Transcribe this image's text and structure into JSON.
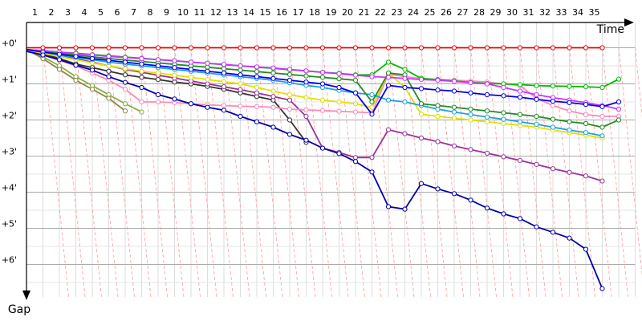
{
  "chart_data": {
    "type": "line",
    "x_label": "Time",
    "y_label": "Gap",
    "xlim": [
      0,
      37
    ],
    "ylim": [
      -0.7,
      6.9
    ],
    "xticks": [
      1,
      2,
      3,
      4,
      5,
      6,
      7,
      8,
      9,
      10,
      11,
      12,
      13,
      14,
      15,
      16,
      17,
      18,
      19,
      20,
      21,
      22,
      23,
      24,
      25,
      26,
      27,
      28,
      29,
      30,
      31,
      32,
      33,
      34,
      35
    ],
    "yticks": [
      {
        "value": 0,
        "label": "+0'"
      },
      {
        "value": 1,
        "label": "+1'"
      },
      {
        "value": 2,
        "label": "+2'"
      },
      {
        "value": 3,
        "label": "+3'"
      },
      {
        "value": 4,
        "label": "+4'"
      },
      {
        "value": 5,
        "label": "+5'"
      },
      {
        "value": 6,
        "label": "+6'"
      }
    ],
    "grid": true,
    "series": [
      {
        "color": "#88aa44",
        "values": [
          0.05,
          0.25,
          0.5,
          0.8,
          1.05,
          1.3,
          1.55,
          1.78,
          null,
          null,
          null,
          null,
          null,
          null,
          null,
          null,
          null,
          null,
          null,
          null,
          null,
          null,
          null,
          null,
          null,
          null,
          null,
          null,
          null,
          null,
          null,
          null,
          null,
          null,
          null,
          null,
          null
        ]
      },
      {
        "color": "#888844",
        "values": [
          0.05,
          0.3,
          0.6,
          0.9,
          1.15,
          1.4,
          1.75,
          null,
          null,
          null,
          null,
          null,
          null,
          null,
          null,
          null,
          null,
          null,
          null,
          null,
          null,
          null,
          null,
          null,
          null,
          null,
          null,
          null,
          null,
          null,
          null,
          null,
          null,
          null,
          null,
          null,
          null
        ]
      },
      {
        "color": "#333333",
        "values": [
          0.05,
          0.15,
          0.3,
          0.45,
          0.55,
          0.65,
          0.75,
          0.82,
          0.88,
          0.95,
          1.0,
          1.07,
          1.15,
          1.25,
          1.35,
          1.45,
          2.0,
          2.62,
          null,
          null,
          null,
          null,
          null,
          null,
          null,
          null,
          null,
          null,
          null,
          null,
          null,
          null,
          null,
          null,
          null,
          null,
          null
        ]
      },
      {
        "color": "#993399",
        "values": [
          0.05,
          0.1,
          0.2,
          0.3,
          0.4,
          0.5,
          0.6,
          0.68,
          0.76,
          0.84,
          0.92,
          1.0,
          1.08,
          1.16,
          1.25,
          1.35,
          1.45,
          1.9,
          2.78,
          2.9,
          3.04,
          3.04,
          2.27,
          2.38,
          2.5,
          2.6,
          2.72,
          2.82,
          2.92,
          3.02,
          3.12,
          3.23,
          3.35,
          3.45,
          3.55,
          3.69,
          null
        ]
      },
      {
        "color": "#ff88bb",
        "values": [
          0.05,
          0.2,
          0.35,
          0.5,
          0.7,
          0.9,
          1.15,
          1.5,
          1.5,
          1.52,
          1.55,
          1.58,
          1.6,
          1.62,
          1.63,
          1.65,
          1.7,
          1.72,
          1.74,
          1.76,
          1.78,
          1.8,
          0.73,
          0.8,
          0.85,
          0.88,
          0.9,
          0.92,
          0.95,
          1.0,
          1.05,
          1.4,
          1.6,
          1.75,
          1.85,
          1.9,
          1.9
        ]
      },
      {
        "color": "#e0e000",
        "values": [
          0.05,
          0.15,
          0.25,
          0.33,
          0.42,
          0.5,
          0.58,
          0.65,
          0.7,
          0.76,
          0.82,
          0.88,
          0.94,
          1.0,
          1.1,
          1.2,
          1.3,
          1.38,
          1.45,
          1.5,
          1.55,
          1.65,
          0.7,
          1.1,
          1.84,
          1.9,
          1.95,
          2.0,
          2.05,
          2.1,
          2.15,
          2.2,
          2.28,
          2.35,
          2.42,
          2.5,
          null
        ]
      },
      {
        "color": "#1e9fe0",
        "values": [
          0.05,
          0.12,
          0.2,
          0.27,
          0.33,
          0.4,
          0.45,
          0.5,
          0.55,
          0.6,
          0.65,
          0.7,
          0.75,
          0.8,
          0.85,
          0.9,
          0.97,
          1.04,
          1.1,
          1.18,
          1.25,
          1.3,
          1.45,
          1.5,
          1.6,
          1.7,
          1.78,
          1.85,
          1.92,
          1.98,
          2.05,
          2.12,
          2.2,
          2.28,
          2.35,
          2.44,
          null
        ]
      },
      {
        "color": "#228b22",
        "values": [
          0.05,
          0.1,
          0.15,
          0.2,
          0.25,
          0.3,
          0.34,
          0.38,
          0.42,
          0.46,
          0.5,
          0.54,
          0.58,
          0.62,
          0.66,
          0.7,
          0.74,
          0.78,
          0.82,
          0.86,
          0.9,
          1.5,
          0.7,
          0.75,
          1.55,
          1.6,
          1.65,
          1.7,
          1.75,
          1.8,
          1.85,
          1.9,
          1.98,
          2.05,
          2.1,
          2.2,
          2.0
        ]
      },
      {
        "color": "#00bb00",
        "values": [
          0.05,
          0.08,
          0.12,
          0.15,
          0.19,
          0.22,
          0.26,
          0.29,
          0.33,
          0.36,
          0.4,
          0.43,
          0.47,
          0.5,
          0.54,
          0.57,
          0.61,
          0.64,
          0.68,
          0.71,
          0.75,
          0.75,
          0.4,
          0.6,
          0.85,
          0.88,
          0.92,
          0.96,
          0.99,
          1.0,
          1.02,
          1.05,
          1.06,
          1.07,
          1.08,
          1.1,
          0.87
        ]
      },
      {
        "color": "#cc33ff",
        "values": [
          0.05,
          0.08,
          0.12,
          0.16,
          0.2,
          0.24,
          0.27,
          0.3,
          0.33,
          0.36,
          0.4,
          0.43,
          0.46,
          0.5,
          0.53,
          0.56,
          0.6,
          0.64,
          0.68,
          0.72,
          0.76,
          0.8,
          0.82,
          0.85,
          0.88,
          0.9,
          0.93,
          0.97,
          1.0,
          1.1,
          1.2,
          1.3,
          1.38,
          1.45,
          1.52,
          1.6,
          1.7
        ]
      },
      {
        "color": "#0000ee",
        "values": [
          0.05,
          0.12,
          0.18,
          0.24,
          0.3,
          0.35,
          0.4,
          0.45,
          0.5,
          0.55,
          0.6,
          0.65,
          0.7,
          0.75,
          0.8,
          0.85,
          0.9,
          0.95,
          1.0,
          1.1,
          1.25,
          1.84,
          1.04,
          1.1,
          1.13,
          1.17,
          1.2,
          1.25,
          1.3,
          1.33,
          1.37,
          1.43,
          1.48,
          1.52,
          1.57,
          1.63,
          1.5
        ]
      },
      {
        "color": "#0000aa",
        "values": [
          0.1,
          0.2,
          0.33,
          0.48,
          0.62,
          0.8,
          0.96,
          1.1,
          1.3,
          1.42,
          1.55,
          1.65,
          1.73,
          1.9,
          2.05,
          2.2,
          2.4,
          2.56,
          2.78,
          2.93,
          3.15,
          3.44,
          4.4,
          4.47,
          3.76,
          3.91,
          4.04,
          4.22,
          4.44,
          4.6,
          4.73,
          4.96,
          5.11,
          5.27,
          5.58,
          6.67,
          null
        ]
      },
      {
        "color": "#ee0000",
        "values": [
          0,
          0,
          0,
          0,
          0,
          0,
          0,
          0,
          0,
          0,
          0,
          0,
          0,
          0,
          0,
          0,
          0,
          0,
          0,
          0,
          0,
          0,
          0,
          0,
          0,
          0,
          0,
          0,
          0,
          0,
          0,
          0,
          0,
          0,
          0,
          0,
          null
        ]
      }
    ]
  }
}
